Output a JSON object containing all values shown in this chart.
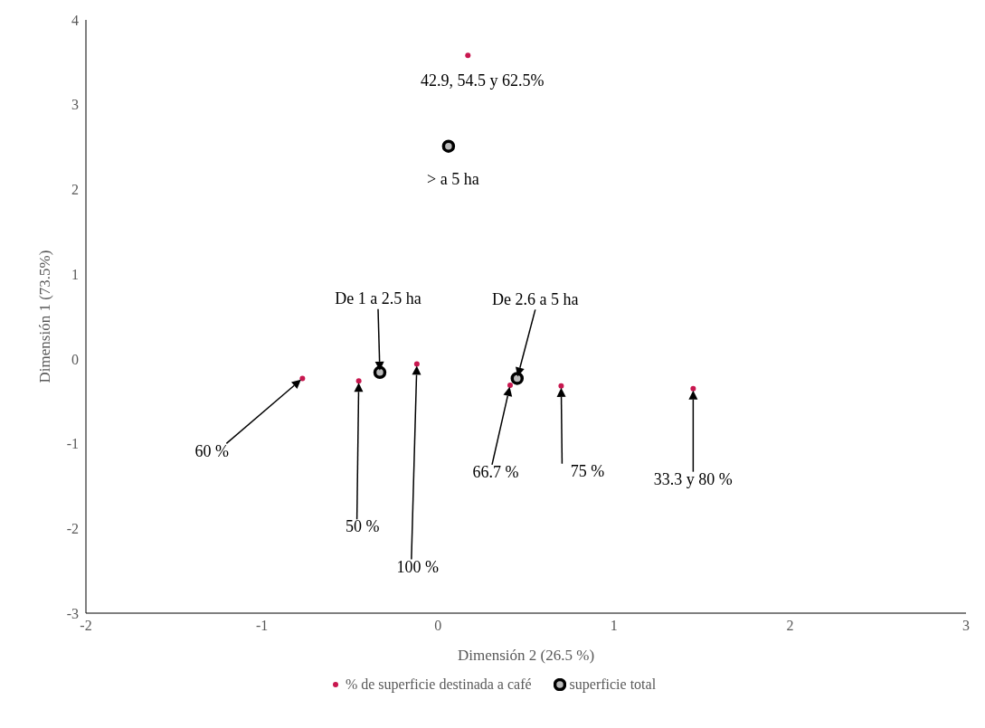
{
  "chart_data": {
    "type": "scatter",
    "xlabel": "Dimensión 2 (26.5 %)",
    "ylabel": "Dimensión 1 (73.5%)",
    "xlim": [
      -2,
      3
    ],
    "xticks": [
      -2,
      -1,
      0,
      1,
      2,
      3
    ],
    "ylim": [
      -3,
      4
    ],
    "yticks": [
      -3,
      -2,
      -1,
      0,
      1,
      2,
      3,
      4
    ],
    "grid": false,
    "legend": "bottom",
    "marker": "circle",
    "series": [
      {
        "name": "% de superficie destinada a café",
        "color": "#c8174f",
        "x": [
          0.17,
          -0.77,
          -0.45,
          -0.12,
          0.41,
          0.7,
          1.45
        ],
        "values": [
          3.58,
          -0.23,
          -0.26,
          -0.06,
          -0.31,
          -0.32,
          -0.35
        ]
      },
      {
        "name": "superficie total",
        "color": "#000000",
        "x": [
          0.06,
          -0.33,
          0.45
        ],
        "values": [
          2.51,
          -0.16,
          -0.23
        ]
      }
    ],
    "annotations": [
      "42.9, 54.5 y 62.5%",
      "> a 5 ha",
      "De 1 a 2.5 ha",
      "De 2.6 a 5 ha",
      "60 %",
      "50 %",
      "100 %",
      "66.7 %",
      "75 %",
      "33.3 y 80 %"
    ]
  }
}
